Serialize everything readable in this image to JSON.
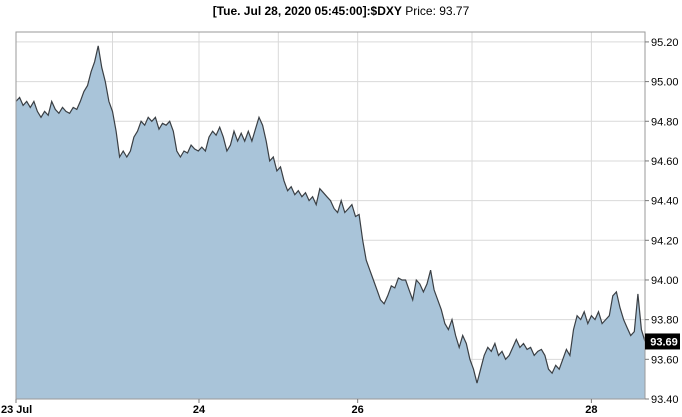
{
  "header": {
    "timestamp": "[Tue. Jul 28, 2020 05:45:00]",
    "symbol": ":$DXY",
    "price_label": " Price: ",
    "price_value": "93.77"
  },
  "colors": {
    "area_fill": "#a9c4d9",
    "line": "#3a3f44",
    "grid": "#d9d9d9",
    "last_tag_bg": "#000000",
    "last_tag_text": "#ffffff"
  },
  "chart_data": {
    "type": "area",
    "symbol": "$DXY",
    "title": "[Tue. Jul 28, 2020 05:45:00]:$DXY Price: 93.77",
    "xlabel": "",
    "ylabel": "",
    "ylim": [
      93.4,
      95.25
    ],
    "yticks": [
      93.4,
      93.6,
      93.8,
      94.0,
      94.2,
      94.4,
      94.6,
      94.8,
      95.0,
      95.2
    ],
    "ytick_labels": [
      "93.40",
      "93.60",
      "93.80",
      "94.00",
      "94.20",
      "94.40",
      "94.60",
      "94.80",
      "95.00",
      "95.20"
    ],
    "xlim": [
      0,
      88
    ],
    "xticks": [
      {
        "x": 0,
        "label": "23 Jul"
      },
      {
        "x": 25.6,
        "label": "24"
      },
      {
        "x": 47.8,
        "label": "26"
      },
      {
        "x": 80.5,
        "label": "28"
      }
    ],
    "extra_gridlines_x": [
      13.5,
      36.7,
      63.8
    ],
    "grid": true,
    "last_value": 93.69,
    "last_value_label": "93.69",
    "series": [
      {
        "values": [
          [
            0,
            94.9
          ],
          [
            0.5,
            94.92
          ],
          [
            1,
            94.88
          ],
          [
            1.5,
            94.9
          ],
          [
            2,
            94.87
          ],
          [
            2.5,
            94.9
          ],
          [
            3,
            94.85
          ],
          [
            3.5,
            94.82
          ],
          [
            4,
            94.85
          ],
          [
            4.5,
            94.83
          ],
          [
            5,
            94.9
          ],
          [
            5.5,
            94.86
          ],
          [
            6,
            94.84
          ],
          [
            6.5,
            94.87
          ],
          [
            7,
            94.85
          ],
          [
            7.5,
            94.84
          ],
          [
            8,
            94.87
          ],
          [
            8.5,
            94.86
          ],
          [
            9,
            94.9
          ],
          [
            9.5,
            94.95
          ],
          [
            10,
            94.98
          ],
          [
            10.5,
            95.05
          ],
          [
            11,
            95.1
          ],
          [
            11.5,
            95.18
          ],
          [
            12,
            95.07
          ],
          [
            12.5,
            95.0
          ],
          [
            13,
            94.9
          ],
          [
            13.5,
            94.85
          ],
          [
            14,
            94.75
          ],
          [
            14.5,
            94.62
          ],
          [
            15,
            94.65
          ],
          [
            15.5,
            94.62
          ],
          [
            16,
            94.65
          ],
          [
            16.5,
            94.72
          ],
          [
            17,
            94.75
          ],
          [
            17.5,
            94.8
          ],
          [
            18,
            94.78
          ],
          [
            18.5,
            94.82
          ],
          [
            19,
            94.8
          ],
          [
            19.5,
            94.82
          ],
          [
            20,
            94.76
          ],
          [
            20.5,
            94.79
          ],
          [
            21,
            94.78
          ],
          [
            21.5,
            94.8
          ],
          [
            22,
            94.75
          ],
          [
            22.5,
            94.65
          ],
          [
            23,
            94.62
          ],
          [
            23.5,
            94.65
          ],
          [
            24,
            94.64
          ],
          [
            24.5,
            94.68
          ],
          [
            25,
            94.66
          ],
          [
            25.5,
            94.65
          ],
          [
            26,
            94.67
          ],
          [
            26.5,
            94.65
          ],
          [
            27,
            94.72
          ],
          [
            27.5,
            94.75
          ],
          [
            28,
            94.73
          ],
          [
            28.5,
            94.77
          ],
          [
            29,
            94.72
          ],
          [
            29.5,
            94.65
          ],
          [
            30,
            94.68
          ],
          [
            30.5,
            94.75
          ],
          [
            31,
            94.7
          ],
          [
            31.5,
            94.74
          ],
          [
            32,
            94.7
          ],
          [
            32.5,
            94.75
          ],
          [
            33,
            94.7
          ],
          [
            33.5,
            94.76
          ],
          [
            34,
            94.82
          ],
          [
            34.5,
            94.78
          ],
          [
            35,
            94.7
          ],
          [
            35.5,
            94.6
          ],
          [
            36,
            94.62
          ],
          [
            36.5,
            94.55
          ],
          [
            37,
            94.57
          ],
          [
            37.5,
            94.5
          ],
          [
            38,
            94.45
          ],
          [
            38.5,
            94.47
          ],
          [
            39,
            94.43
          ],
          [
            39.5,
            94.45
          ],
          [
            40,
            94.42
          ],
          [
            40.5,
            94.44
          ],
          [
            41,
            94.4
          ],
          [
            41.5,
            94.42
          ],
          [
            42,
            94.38
          ],
          [
            42.5,
            94.46
          ],
          [
            43,
            94.44
          ],
          [
            43.5,
            94.42
          ],
          [
            44,
            94.4
          ],
          [
            44.5,
            94.36
          ],
          [
            45,
            94.34
          ],
          [
            45.5,
            94.4
          ],
          [
            46,
            94.34
          ],
          [
            46.5,
            94.36
          ],
          [
            47,
            94.38
          ],
          [
            47.5,
            94.32
          ],
          [
            48,
            94.33
          ],
          [
            48.5,
            94.2
          ],
          [
            49,
            94.1
          ],
          [
            49.5,
            94.05
          ],
          [
            50,
            94.0
          ],
          [
            50.5,
            93.95
          ],
          [
            51,
            93.9
          ],
          [
            51.5,
            93.88
          ],
          [
            52,
            93.92
          ],
          [
            52.5,
            93.97
          ],
          [
            53,
            93.96
          ],
          [
            53.5,
            94.01
          ],
          [
            54,
            94.0
          ],
          [
            54.5,
            94.0
          ],
          [
            55,
            93.95
          ],
          [
            55.5,
            93.9
          ],
          [
            56,
            94.0
          ],
          [
            56.5,
            93.98
          ],
          [
            57,
            93.94
          ],
          [
            57.5,
            93.98
          ],
          [
            58,
            94.05
          ],
          [
            58.5,
            93.95
          ],
          [
            59,
            93.9
          ],
          [
            59.5,
            93.85
          ],
          [
            60,
            93.78
          ],
          [
            60.5,
            93.75
          ],
          [
            61,
            93.8
          ],
          [
            61.5,
            93.72
          ],
          [
            62,
            93.66
          ],
          [
            62.5,
            93.72
          ],
          [
            63,
            93.68
          ],
          [
            63.5,
            93.6
          ],
          [
            64,
            93.55
          ],
          [
            64.5,
            93.48
          ],
          [
            65,
            93.55
          ],
          [
            65.5,
            93.62
          ],
          [
            66,
            93.66
          ],
          [
            66.5,
            93.64
          ],
          [
            67,
            93.68
          ],
          [
            67.5,
            93.62
          ],
          [
            68,
            93.64
          ],
          [
            68.5,
            93.6
          ],
          [
            69,
            93.62
          ],
          [
            69.5,
            93.66
          ],
          [
            70,
            93.7
          ],
          [
            70.5,
            93.66
          ],
          [
            71,
            93.68
          ],
          [
            71.5,
            93.65
          ],
          [
            72,
            93.66
          ],
          [
            72.5,
            93.62
          ],
          [
            73,
            93.64
          ],
          [
            73.5,
            93.65
          ],
          [
            74,
            93.62
          ],
          [
            74.5,
            93.55
          ],
          [
            75,
            93.53
          ],
          [
            75.5,
            93.57
          ],
          [
            76,
            93.55
          ],
          [
            76.5,
            93.6
          ],
          [
            77,
            93.65
          ],
          [
            77.5,
            93.62
          ],
          [
            78,
            93.75
          ],
          [
            78.5,
            93.82
          ],
          [
            79,
            93.8
          ],
          [
            79.5,
            93.84
          ],
          [
            80,
            93.78
          ],
          [
            80.5,
            93.82
          ],
          [
            81,
            93.8
          ],
          [
            81.5,
            93.84
          ],
          [
            82,
            93.78
          ],
          [
            82.5,
            93.8
          ],
          [
            83,
            93.82
          ],
          [
            83.5,
            93.92
          ],
          [
            84,
            93.94
          ],
          [
            84.5,
            93.86
          ],
          [
            85,
            93.8
          ],
          [
            85.5,
            93.76
          ],
          [
            86,
            93.72
          ],
          [
            86.5,
            93.74
          ],
          [
            87,
            93.93
          ],
          [
            87.5,
            93.75
          ],
          [
            88,
            93.69
          ]
        ]
      }
    ]
  }
}
